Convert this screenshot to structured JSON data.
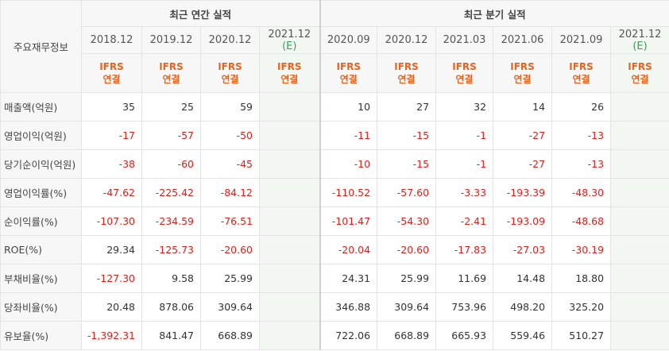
{
  "header": {
    "corner": "주요재무정보",
    "groups": [
      {
        "label": "최근 연간 실적",
        "span": 4
      },
      {
        "label": "최근 분기 실적",
        "span": 6
      }
    ],
    "periods": [
      {
        "date": "2018.12",
        "standard": "IFRS",
        "consolidation": "연결"
      },
      {
        "date": "2019.12",
        "standard": "IFRS",
        "consolidation": "연결"
      },
      {
        "date": "2020.12",
        "standard": "IFRS",
        "consolidation": "연결"
      },
      {
        "date": "2021.12",
        "note": "(E)",
        "standard": "IFRS",
        "consolidation": "연결"
      },
      {
        "date": "2020.09",
        "standard": "IFRS",
        "consolidation": "연결"
      },
      {
        "date": "2020.12",
        "standard": "IFRS",
        "consolidation": "연결"
      },
      {
        "date": "2021.03",
        "standard": "IFRS",
        "consolidation": "연결"
      },
      {
        "date": "2021.06",
        "standard": "IFRS",
        "consolidation": "연결"
      },
      {
        "date": "2021.09",
        "standard": "IFRS",
        "consolidation": "연결"
      },
      {
        "date": "2021.12",
        "note": "(E)",
        "standard": "IFRS",
        "consolidation": "연결"
      }
    ]
  },
  "table": {
    "rows": [
      {
        "label": "매출액(억원)",
        "values": [
          "35",
          "25",
          "59",
          null,
          "10",
          "27",
          "32",
          "14",
          "26",
          null
        ]
      },
      {
        "label": "영업이익(억원)",
        "values": [
          "-17",
          "-57",
          "-50",
          null,
          "-11",
          "-15",
          "-1",
          "-27",
          "-13",
          null
        ]
      },
      {
        "label": "당기순이익(억원)",
        "values": [
          "-38",
          "-60",
          "-45",
          null,
          "-10",
          "-15",
          "-1",
          "-27",
          "-13",
          null
        ]
      },
      {
        "label": "영업이익률(%)",
        "values": [
          "-47.62",
          "-225.42",
          "-84.12",
          null,
          "-110.52",
          "-57.60",
          "-3.33",
          "-193.39",
          "-48.30",
          null
        ]
      },
      {
        "label": "순이익률(%)",
        "values": [
          "-107.30",
          "-234.59",
          "-76.51",
          null,
          "-101.47",
          "-54.30",
          "-2.41",
          "-193.09",
          "-48.68",
          null
        ]
      },
      {
        "label": "ROE(%)",
        "values": [
          "29.34",
          "-125.73",
          "-20.60",
          null,
          "-20.04",
          "-20.60",
          "-17.83",
          "-27.03",
          "-30.19",
          null
        ]
      },
      {
        "label": "부채비율(%)",
        "values": [
          "-127.30",
          "9.58",
          "25.99",
          null,
          "24.31",
          "25.99",
          "11.69",
          "14.48",
          "18.80",
          null
        ]
      },
      {
        "label": "당좌비율(%)",
        "values": [
          "20.48",
          "878.06",
          "309.64",
          null,
          "346.88",
          "309.64",
          "753.96",
          "498.20",
          "325.20",
          null
        ]
      },
      {
        "label": "유보율(%)",
        "values": [
          "-1,392.31",
          "841.47",
          "668.89",
          null,
          "722.06",
          "668.89",
          "665.93",
          "559.46",
          "510.27",
          null
        ]
      }
    ]
  }
}
